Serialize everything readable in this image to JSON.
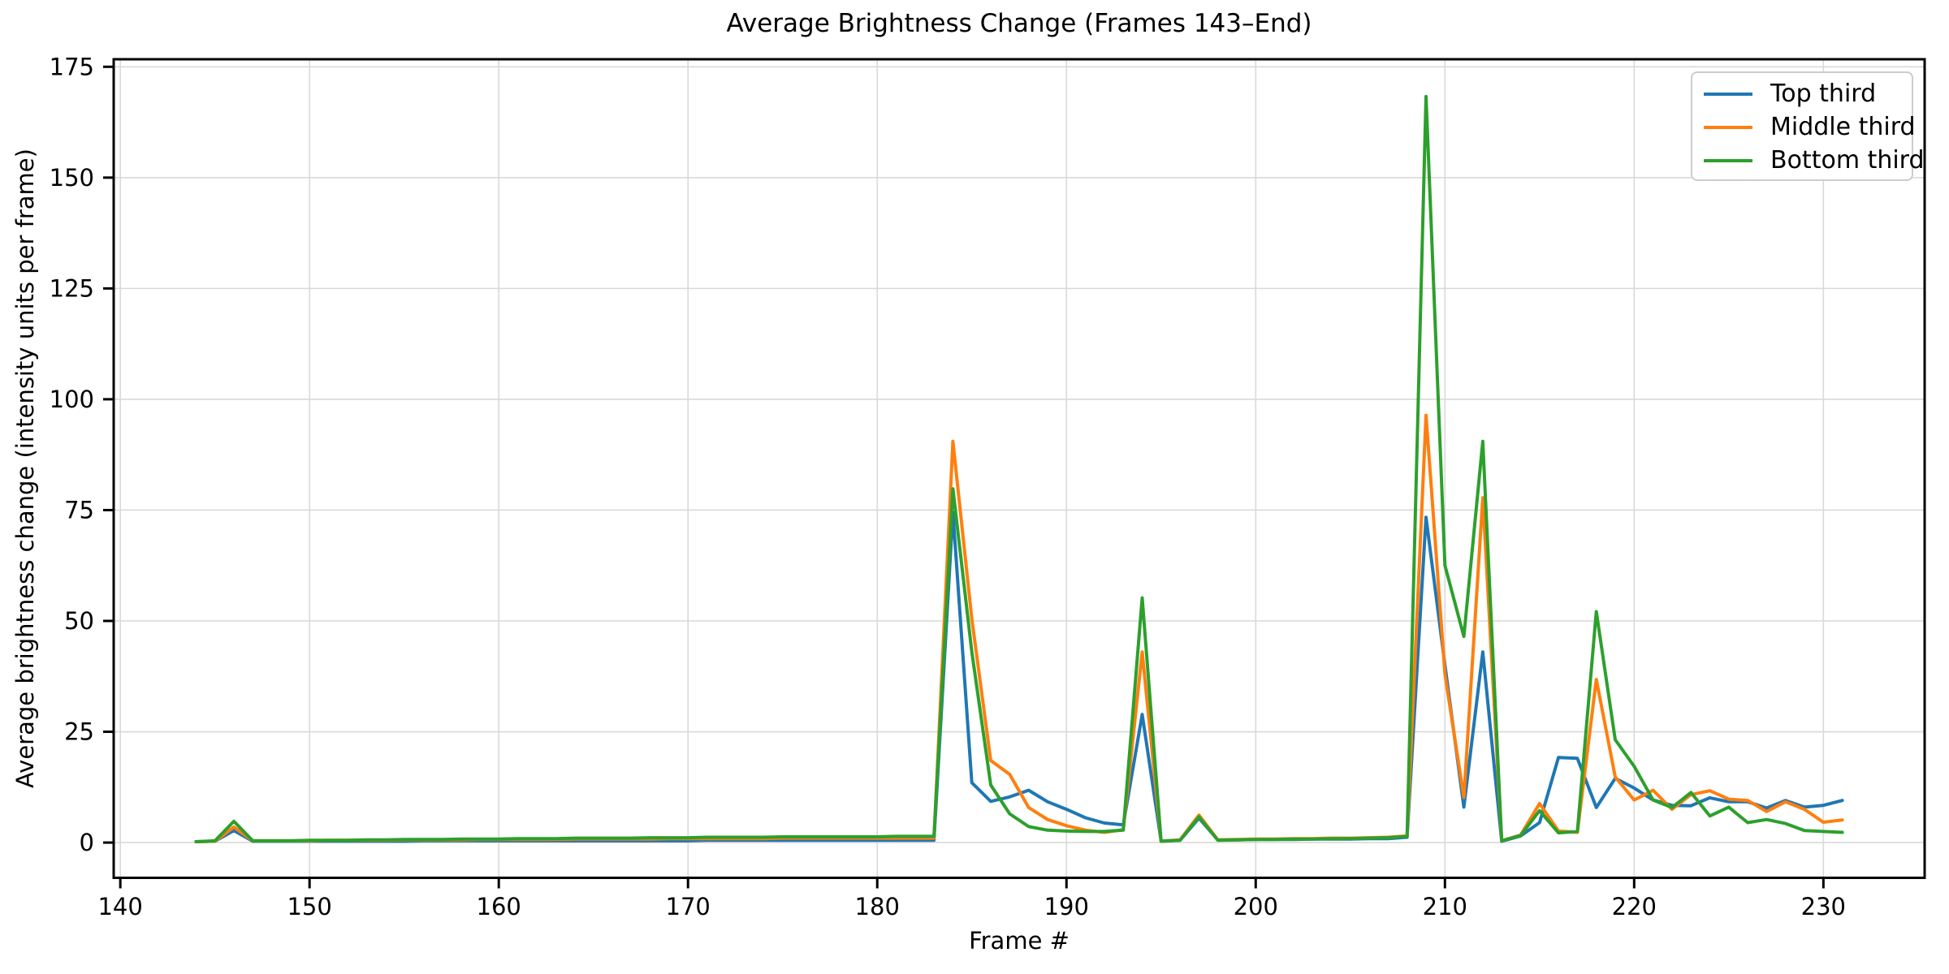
{
  "figure": {
    "title": "Average Brightness Change (Frames 143–End)",
    "xlabel": "Frame #",
    "ylabel": "Average brightness change (intensity units per frame)"
  },
  "legend": {
    "position": "upper right",
    "items": [
      {
        "label": "Top third",
        "color": "#1f77b4"
      },
      {
        "label": "Middle third",
        "color": "#ff7f0e"
      },
      {
        "label": "Bottom third",
        "color": "#2ca02c"
      }
    ]
  },
  "chart_data": {
    "type": "line",
    "title": "Average Brightness Change (Frames 143–End)",
    "xlabel": "Frame #",
    "ylabel": "Average brightness change (intensity units per frame)",
    "grid": true,
    "legend_position": "upper right",
    "grid_color": "#d9d9d9",
    "axis_color": "#000000",
    "background": "#ffffff",
    "xlim": [
      139.65,
      235.35
    ],
    "ylim": [
      -7.95,
      176.7
    ],
    "x_ticks": [
      140,
      150,
      160,
      170,
      180,
      190,
      200,
      210,
      220,
      230
    ],
    "y_ticks": [
      0,
      25,
      50,
      75,
      100,
      125,
      150,
      175
    ],
    "x": [
      144,
      145,
      146,
      147,
      148,
      149,
      150,
      151,
      152,
      153,
      154,
      155,
      156,
      157,
      158,
      159,
      160,
      161,
      162,
      163,
      164,
      165,
      166,
      167,
      168,
      169,
      170,
      171,
      172,
      173,
      174,
      175,
      176,
      177,
      178,
      179,
      180,
      181,
      182,
      183,
      184,
      185,
      186,
      187,
      188,
      189,
      190,
      191,
      192,
      193,
      194,
      195,
      196,
      197,
      198,
      199,
      200,
      201,
      202,
      203,
      204,
      205,
      206,
      207,
      208,
      209,
      210,
      211,
      212,
      213,
      214,
      215,
      216,
      217,
      218,
      219,
      220,
      221,
      222,
      223,
      224,
      225,
      226,
      227,
      228,
      229,
      230,
      231
    ],
    "series": [
      {
        "name": "Top third",
        "color": "#1f77b4",
        "values": [
          0.2,
          0.3,
          2.7,
          0.3,
          0.3,
          0.3,
          0.3,
          0.3,
          0.3,
          0.3,
          0.3,
          0.3,
          0.4,
          0.4,
          0.4,
          0.4,
          0.4,
          0.4,
          0.4,
          0.4,
          0.4,
          0.4,
          0.4,
          0.4,
          0.4,
          0.4,
          0.4,
          0.5,
          0.5,
          0.5,
          0.5,
          0.5,
          0.5,
          0.5,
          0.5,
          0.5,
          0.5,
          0.5,
          0.5,
          0.5,
          74.5,
          13.5,
          9.3,
          10.3,
          11.8,
          9.2,
          7.5,
          5.6,
          4.4,
          4.0,
          28.9,
          0.3,
          0.5,
          5.5,
          0.6,
          0.6,
          0.7,
          0.7,
          0.7,
          0.8,
          0.8,
          0.8,
          0.9,
          0.9,
          1.2,
          73.4,
          40.0,
          8.0,
          43.0,
          0.3,
          1.5,
          4.5,
          19.2,
          19.0,
          7.9,
          14.5,
          12.3,
          9.6,
          8.4,
          8.3,
          10.1,
          9.2,
          9.2,
          7.8,
          9.5,
          8.0,
          8.4,
          9.5
        ]
      },
      {
        "name": "Middle third",
        "color": "#ff7f0e",
        "values": [
          0.2,
          0.3,
          3.5,
          0.4,
          0.4,
          0.4,
          0.4,
          0.5,
          0.5,
          0.5,
          0.5,
          0.6,
          0.6,
          0.6,
          0.6,
          0.7,
          0.7,
          0.7,
          0.7,
          0.7,
          0.8,
          0.8,
          0.8,
          0.8,
          0.8,
          0.9,
          0.9,
          0.9,
          0.9,
          0.9,
          0.9,
          1.0,
          1.0,
          1.0,
          1.0,
          1.0,
          1.0,
          1.0,
          1.0,
          1.0,
          90.5,
          50.5,
          18.5,
          15.4,
          7.9,
          5.2,
          3.8,
          2.8,
          2.3,
          2.9,
          43.0,
          0.3,
          0.6,
          6.2,
          0.6,
          0.7,
          0.8,
          0.8,
          0.9,
          0.9,
          1.0,
          1.0,
          1.1,
          1.2,
          1.5,
          96.4,
          38.0,
          10.2,
          77.8,
          0.4,
          1.7,
          8.8,
          2.6,
          2.3,
          36.8,
          14.8,
          9.6,
          11.8,
          7.5,
          10.8,
          11.7,
          9.8,
          9.5,
          7.0,
          9.2,
          7.5,
          4.6,
          5.1
        ]
      },
      {
        "name": "Bottom third",
        "color": "#2ca02c",
        "values": [
          0.2,
          0.4,
          4.8,
          0.4,
          0.4,
          0.4,
          0.5,
          0.5,
          0.5,
          0.6,
          0.6,
          0.7,
          0.7,
          0.7,
          0.8,
          0.8,
          0.8,
          0.9,
          0.9,
          0.9,
          1.0,
          1.0,
          1.0,
          1.0,
          1.1,
          1.1,
          1.1,
          1.2,
          1.2,
          1.2,
          1.2,
          1.3,
          1.3,
          1.3,
          1.3,
          1.3,
          1.3,
          1.4,
          1.4,
          1.4,
          79.8,
          43.0,
          13.0,
          6.5,
          3.6,
          2.8,
          2.6,
          2.5,
          2.5,
          2.8,
          55.2,
          0.3,
          0.5,
          5.8,
          0.5,
          0.6,
          0.7,
          0.7,
          0.8,
          0.8,
          0.9,
          0.9,
          1.0,
          1.1,
          1.4,
          168.3,
          62.5,
          46.5,
          90.5,
          0.4,
          1.6,
          7.2,
          2.2,
          2.5,
          52.1,
          23.2,
          17.2,
          9.6,
          7.9,
          11.3,
          6.0,
          8.0,
          4.5,
          5.2,
          4.3,
          2.7,
          2.5,
          2.3
        ]
      }
    ]
  }
}
